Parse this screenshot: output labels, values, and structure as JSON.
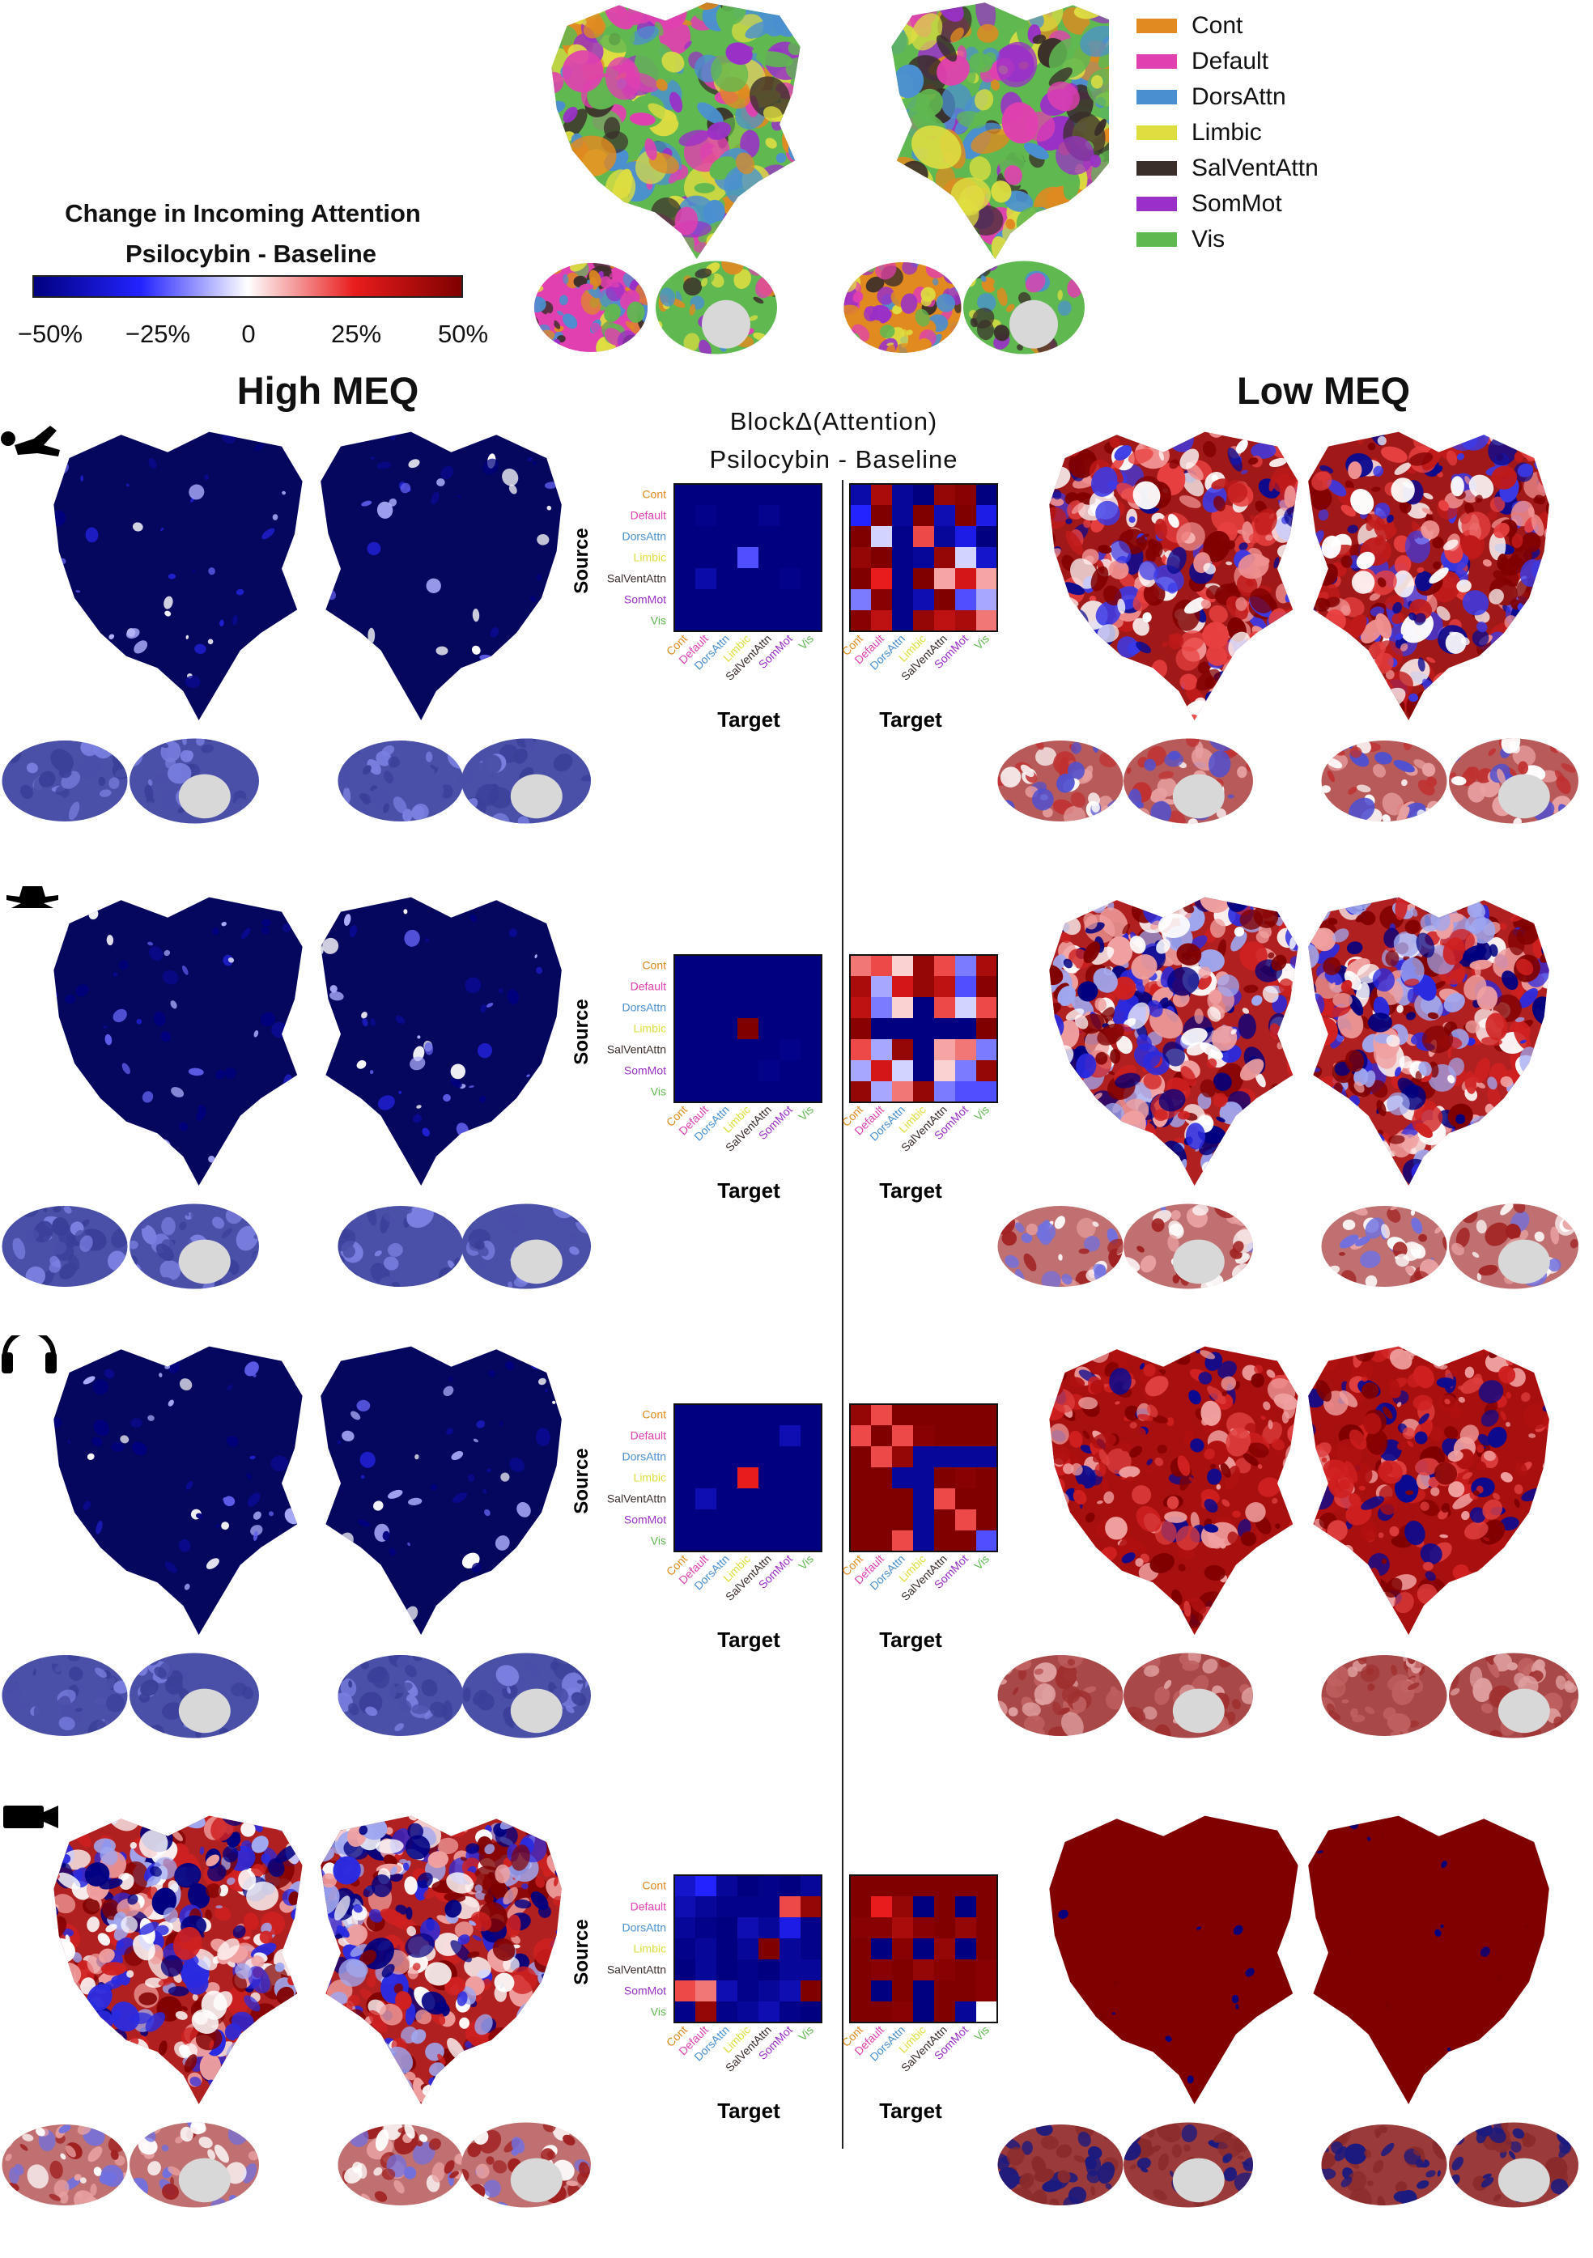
{
  "colorbar": {
    "title": "Change in Incoming Attention",
    "subtitle": "Psilocybin - Baseline",
    "ticks": [
      "−50%",
      "−25%",
      "0",
      "25%",
      "50%"
    ],
    "colors": [
      "#000080",
      "#2323ff",
      "#ffffff",
      "#e81c1c",
      "#800000"
    ]
  },
  "network_legend": [
    {
      "label": "Cont",
      "color": "#e08a20"
    },
    {
      "label": "Default",
      "color": "#e040b0"
    },
    {
      "label": "DorsAttn",
      "color": "#4a90d0"
    },
    {
      "label": "Limbic",
      "color": "#dede40"
    },
    {
      "label": "SalVentAttn",
      "color": "#3a2e2a"
    },
    {
      "label": "SomMot",
      "color": "#9a30c8"
    },
    {
      "label": "Vis",
      "color": "#60b850"
    }
  ],
  "headers": {
    "high": "High MEQ",
    "low": "Low MEQ",
    "block_title": "BlockΔ(Attention)",
    "block_subtitle": "Psilocybin - Baseline"
  },
  "axis": {
    "source": "Source",
    "target": "Target"
  },
  "conditions": [
    {
      "icon": "lying-person-icon",
      "high_tone": "blue",
      "low_tone": "mixed-red"
    },
    {
      "icon": "meditation-icon",
      "high_tone": "blue",
      "low_tone": "mixed"
    },
    {
      "icon": "headphones-icon",
      "high_tone": "blue",
      "low_tone": "red"
    },
    {
      "icon": "movie-camera-icon",
      "high_tone": "mixed",
      "low_tone": "darkred"
    }
  ],
  "chart_data": {
    "type": "heatmap",
    "rows": [
      "Cont",
      "Default",
      "DorsAttn",
      "Limbic",
      "SalVentAttn",
      "SomMot",
      "Vis"
    ],
    "cols": [
      "Cont",
      "Default",
      "DorsAttn",
      "Limbic",
      "SalVentAttn",
      "SomMot",
      "Vis"
    ],
    "value_range": [
      -50,
      50
    ],
    "matrices": [
      {
        "condition": 1,
        "group": "High MEQ",
        "values": [
          [
            -50,
            -50,
            -50,
            -50,
            -50,
            -50,
            -50
          ],
          [
            -50,
            -48,
            -50,
            -50,
            -47,
            -50,
            -50
          ],
          [
            -50,
            -50,
            -50,
            -50,
            -50,
            -50,
            -50
          ],
          [
            -50,
            -50,
            -50,
            -20,
            -50,
            -50,
            -50
          ],
          [
            -50,
            -42,
            -50,
            -50,
            -50,
            -48,
            -50
          ],
          [
            -50,
            -50,
            -50,
            -50,
            -50,
            -50,
            -50
          ],
          [
            -50,
            -50,
            -50,
            -50,
            -50,
            -50,
            -50
          ]
        ]
      },
      {
        "condition": 1,
        "group": "Low MEQ",
        "values": [
          [
            -42,
            40,
            -45,
            -50,
            45,
            48,
            -50
          ],
          [
            -25,
            50,
            -45,
            50,
            -40,
            50,
            -30
          ],
          [
            50,
            -5,
            -48,
            20,
            -45,
            -30,
            -50
          ],
          [
            45,
            50,
            -48,
            -45,
            45,
            -5,
            -35
          ],
          [
            50,
            25,
            -48,
            50,
            10,
            30,
            10
          ],
          [
            -15,
            48,
            -48,
            -40,
            50,
            -20,
            -10
          ],
          [
            48,
            35,
            -48,
            45,
            35,
            40,
            15
          ]
        ]
      },
      {
        "condition": 2,
        "group": "High MEQ",
        "values": [
          [
            -50,
            -50,
            -50,
            -50,
            -50,
            -50,
            -50
          ],
          [
            -50,
            -50,
            -50,
            -50,
            -50,
            -50,
            -50
          ],
          [
            -50,
            -50,
            -50,
            -50,
            -50,
            -50,
            -50
          ],
          [
            -50,
            -50,
            -50,
            50,
            -50,
            -50,
            -50
          ],
          [
            -50,
            -50,
            -50,
            -50,
            -50,
            -48,
            -50
          ],
          [
            -50,
            -50,
            -50,
            -50,
            -48,
            -50,
            -50
          ],
          [
            -50,
            -50,
            -50,
            -50,
            -50,
            -50,
            -50
          ]
        ]
      },
      {
        "condition": 2,
        "group": "Low MEQ",
        "values": [
          [
            15,
            20,
            5,
            45,
            20,
            -15,
            40
          ],
          [
            40,
            -10,
            30,
            45,
            35,
            -20,
            48
          ],
          [
            35,
            -15,
            5,
            -50,
            20,
            -5,
            20
          ],
          [
            48,
            -50,
            -50,
            -50,
            -50,
            -50,
            50
          ],
          [
            20,
            -10,
            45,
            -50,
            10,
            15,
            -15
          ],
          [
            -10,
            30,
            -5,
            -50,
            5,
            -15,
            45
          ],
          [
            45,
            -10,
            15,
            45,
            -15,
            -20,
            -20
          ]
        ]
      },
      {
        "condition": 3,
        "group": "High MEQ",
        "values": [
          [
            -50,
            -50,
            -50,
            -50,
            -50,
            -50,
            -50
          ],
          [
            -50,
            -50,
            -50,
            -50,
            -50,
            -40,
            -50
          ],
          [
            -50,
            -50,
            -50,
            -50,
            -50,
            -50,
            -50
          ],
          [
            -50,
            -50,
            -50,
            25,
            -50,
            -50,
            -50
          ],
          [
            -50,
            -40,
            -50,
            -50,
            -50,
            -50,
            -50
          ],
          [
            -50,
            -50,
            -50,
            -50,
            -50,
            -50,
            -50
          ],
          [
            -50,
            -50,
            -50,
            -50,
            -50,
            -50,
            -50
          ]
        ]
      },
      {
        "condition": 3,
        "group": "Low MEQ",
        "values": [
          [
            45,
            20,
            50,
            50,
            50,
            50,
            50
          ],
          [
            20,
            50,
            20,
            48,
            50,
            50,
            50
          ],
          [
            50,
            20,
            45,
            -45,
            -45,
            -45,
            -45
          ],
          [
            50,
            50,
            -45,
            -45,
            50,
            48,
            50
          ],
          [
            50,
            50,
            50,
            -45,
            20,
            50,
            50
          ],
          [
            50,
            50,
            50,
            -45,
            50,
            20,
            50
          ],
          [
            50,
            50,
            20,
            -45,
            50,
            50,
            -20
          ]
        ]
      },
      {
        "condition": 4,
        "group": "High MEQ",
        "values": [
          [
            -35,
            -25,
            -45,
            -50,
            -48,
            -50,
            -45
          ],
          [
            -40,
            -45,
            -48,
            -48,
            -48,
            20,
            45
          ],
          [
            -45,
            -48,
            -50,
            -40,
            -45,
            -30,
            -48
          ],
          [
            -48,
            -45,
            -50,
            -45,
            50,
            -45,
            -48
          ],
          [
            -50,
            -45,
            -50,
            -48,
            -50,
            -45,
            -45
          ],
          [
            20,
            15,
            -40,
            -48,
            -45,
            -40,
            50
          ],
          [
            -48,
            45,
            -48,
            -45,
            -40,
            -48,
            -50
          ]
        ]
      },
      {
        "condition": 4,
        "group": "Low MEQ",
        "values": [
          [
            50,
            50,
            50,
            50,
            50,
            50,
            50
          ],
          [
            50,
            25,
            45,
            -50,
            50,
            -50,
            50
          ],
          [
            48,
            48,
            40,
            48,
            50,
            45,
            50
          ],
          [
            50,
            -50,
            48,
            -50,
            45,
            -50,
            50
          ],
          [
            50,
            48,
            50,
            45,
            48,
            50,
            48
          ],
          [
            50,
            -50,
            50,
            -50,
            50,
            50,
            48
          ],
          [
            50,
            50,
            48,
            -50,
            50,
            -45,
            0
          ]
        ]
      }
    ]
  }
}
